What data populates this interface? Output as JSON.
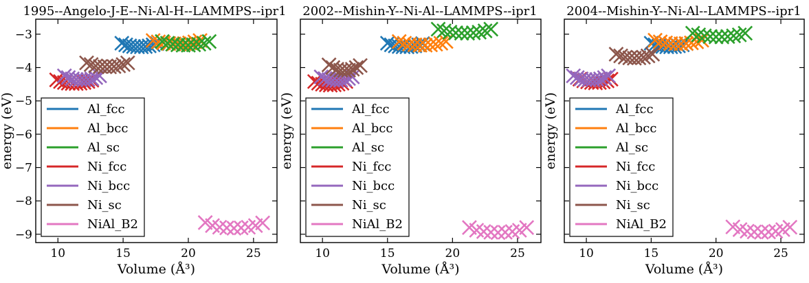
{
  "figure": {
    "panels": [
      {
        "title": "1995--Angelo-J-E--Ni-Al-H--LAMMPS--ipr1"
      },
      {
        "title": "2002--Mishin-Y--Ni-Al--LAMMPS--ipr1"
      },
      {
        "title": "2004--Mishin-Y--Ni-Al--LAMMPS--ipr1"
      }
    ],
    "xlabel": "Volume (Å³)",
    "ylabel": "energy (eV)",
    "legend": [
      "Al_fcc",
      "Al_bcc",
      "Al_sc",
      "Ni_fcc",
      "Ni_bcc",
      "Ni_sc",
      "NiAl_B2"
    ]
  },
  "chart_data": [
    {
      "type": "scatter",
      "title": "1995--Angelo-J-E--Ni-Al-H--LAMMPS--ipr1",
      "xlabel": "Volume (Å³)",
      "ylabel": "energy (eV)",
      "xlim": [
        8.3,
        26.8
      ],
      "ylim": [
        -9.25,
        -2.55
      ],
      "xticks": [
        10,
        15,
        20,
        25
      ],
      "yticks": [
        -9,
        -8,
        -7,
        -6,
        -5,
        -4,
        -3
      ],
      "marker": "x",
      "legend_placement": "lower-left",
      "series": [
        {
          "name": "Al_fcc",
          "color": "#1f77b4",
          "x": [
            14.9,
            15.2,
            15.5,
            15.8,
            16.1,
            16.4,
            16.7,
            17.0,
            17.3,
            17.6
          ],
          "y": [
            -3.27,
            -3.32,
            -3.35,
            -3.37,
            -3.38,
            -3.38,
            -3.37,
            -3.35,
            -3.32,
            -3.28
          ]
        },
        {
          "name": "Al_bcc",
          "color": "#ff7f0e",
          "x": [
            17.3,
            17.7,
            18.1,
            18.5,
            18.9,
            19.3,
            19.7,
            20.1,
            20.5,
            20.9
          ],
          "y": [
            -3.19,
            -3.23,
            -3.26,
            -3.28,
            -3.29,
            -3.29,
            -3.28,
            -3.26,
            -3.23,
            -3.19
          ]
        },
        {
          "name": "Al_sc",
          "color": "#2ca02c",
          "x": [
            18.0,
            18.4,
            18.8,
            19.2,
            19.6,
            20.0,
            20.4,
            20.8,
            21.2,
            21.6
          ],
          "y": [
            -3.22,
            -3.27,
            -3.3,
            -3.32,
            -3.33,
            -3.33,
            -3.32,
            -3.3,
            -3.27,
            -3.22
          ]
        },
        {
          "name": "Ni_fcc",
          "color": "#d62728",
          "x": [
            9.9,
            10.2,
            10.5,
            10.8,
            11.1,
            11.4,
            11.7,
            12.0,
            12.3,
            12.6
          ],
          "y": [
            -4.37,
            -4.42,
            -4.45,
            -4.47,
            -4.48,
            -4.48,
            -4.47,
            -4.45,
            -4.42,
            -4.38
          ]
        },
        {
          "name": "Ni_bcc",
          "color": "#9467bd",
          "x": [
            10.5,
            10.8,
            11.1,
            11.4,
            11.7,
            12.0,
            12.3,
            12.6,
            12.9,
            13.2
          ],
          "y": [
            -4.25,
            -4.3,
            -4.34,
            -4.36,
            -4.37,
            -4.37,
            -4.36,
            -4.34,
            -4.3,
            -4.25
          ]
        },
        {
          "name": "Ni_sc",
          "color": "#8c564b",
          "x": [
            12.2,
            12.55,
            12.9,
            13.25,
            13.6,
            13.95,
            14.3,
            14.65,
            15.0,
            15.35
          ],
          "y": [
            -3.86,
            -3.91,
            -3.95,
            -3.97,
            -3.98,
            -3.98,
            -3.97,
            -3.95,
            -3.91,
            -3.86
          ]
        },
        {
          "name": "NiAl_B2",
          "color": "#e377c2",
          "x": [
            21.3,
            21.85,
            22.4,
            22.95,
            23.5,
            24.05,
            24.6,
            25.15,
            25.7
          ],
          "y": [
            -8.65,
            -8.74,
            -8.79,
            -8.81,
            -8.82,
            -8.81,
            -8.79,
            -8.74,
            -8.66
          ]
        }
      ]
    },
    {
      "type": "scatter",
      "title": "2002--Mishin-Y--Ni-Al--LAMMPS--ipr1",
      "xlabel": "Volume (Å³)",
      "ylabel": "energy (eV)",
      "xlim": [
        8.3,
        26.8
      ],
      "ylim": [
        -9.25,
        -2.55
      ],
      "xticks": [
        10,
        15,
        20,
        25
      ],
      "yticks": [
        -9,
        -8,
        -7,
        -6,
        -5,
        -4,
        -3
      ],
      "marker": "x",
      "legend_placement": "lower-left",
      "series": [
        {
          "name": "Al_fcc",
          "color": "#1f77b4",
          "x": [
            15.0,
            15.3,
            15.6,
            15.9,
            16.2,
            16.5,
            16.8,
            17.1,
            17.4,
            17.7
          ],
          "y": [
            -3.27,
            -3.32,
            -3.35,
            -3.37,
            -3.38,
            -3.38,
            -3.37,
            -3.35,
            -3.32,
            -3.28
          ]
        },
        {
          "name": "Al_bcc",
          "color": "#ff7f0e",
          "x": [
            15.9,
            16.3,
            16.7,
            17.1,
            17.5,
            17.9,
            18.3,
            18.7,
            19.1,
            19.5
          ],
          "y": [
            -3.22,
            -3.27,
            -3.3,
            -3.32,
            -3.33,
            -3.33,
            -3.32,
            -3.3,
            -3.27,
            -3.22
          ]
        },
        {
          "name": "Al_sc",
          "color": "#2ca02c",
          "x": [
            18.9,
            19.35,
            19.8,
            20.25,
            20.7,
            21.15,
            21.6,
            22.05,
            22.5,
            22.95
          ],
          "y": [
            -2.85,
            -2.9,
            -2.94,
            -2.96,
            -2.97,
            -2.97,
            -2.96,
            -2.94,
            -2.9,
            -2.85
          ]
        },
        {
          "name": "Ni_fcc",
          "color": "#d62728",
          "x": [
            9.4,
            9.7,
            10.0,
            10.3,
            10.6,
            10.9,
            11.2,
            11.5,
            11.8
          ],
          "y": [
            -4.42,
            -4.47,
            -4.5,
            -4.52,
            -4.53,
            -4.52,
            -4.5,
            -4.47,
            -4.42
          ]
        },
        {
          "name": "Ni_bcc",
          "color": "#9467bd",
          "x": [
            9.9,
            10.2,
            10.5,
            10.8,
            11.1,
            11.4,
            11.7,
            12.0,
            12.3
          ],
          "y": [
            -4.28,
            -4.33,
            -4.36,
            -4.38,
            -4.39,
            -4.38,
            -4.36,
            -4.33,
            -4.28
          ]
        },
        {
          "name": "Ni_sc",
          "color": "#8c564b",
          "x": [
            10.5,
            10.8,
            11.1,
            11.4,
            11.7,
            12.0,
            12.3,
            12.6,
            12.9
          ],
          "y": [
            -3.92,
            -4.0,
            -4.05,
            -4.08,
            -4.09,
            -4.08,
            -4.05,
            -4.0,
            -3.94
          ]
        },
        {
          "name": "NiAl_B2",
          "color": "#e377c2",
          "x": [
            21.3,
            21.85,
            22.4,
            22.95,
            23.5,
            24.05,
            24.6,
            25.15,
            25.7
          ],
          "y": [
            -8.8,
            -8.88,
            -8.92,
            -8.94,
            -8.95,
            -8.94,
            -8.92,
            -8.88,
            -8.8
          ]
        }
      ]
    },
    {
      "type": "scatter",
      "title": "2004--Mishin-Y--Ni-Al--LAMMPS--ipr1",
      "xlabel": "Volume (Å³)",
      "ylabel": "energy (eV)",
      "xlim": [
        8.3,
        26.8
      ],
      "ylim": [
        -9.25,
        -2.55
      ],
      "xticks": [
        10,
        15,
        20,
        25
      ],
      "yticks": [
        -9,
        -8,
        -7,
        -6,
        -5,
        -4,
        -3
      ],
      "marker": "x",
      "legend_placement": "lower-left",
      "series": [
        {
          "name": "Al_fcc",
          "color": "#1f77b4",
          "x": [
            15.0,
            15.3,
            15.6,
            15.9,
            16.2,
            16.5,
            16.8,
            17.1,
            17.4,
            17.7
          ],
          "y": [
            -3.27,
            -3.32,
            -3.35,
            -3.37,
            -3.38,
            -3.38,
            -3.37,
            -3.35,
            -3.32,
            -3.28
          ]
        },
        {
          "name": "Al_bcc",
          "color": "#ff7f0e",
          "x": [
            15.3,
            15.7,
            16.1,
            16.5,
            16.9,
            17.3,
            17.7,
            18.1,
            18.5,
            18.9
          ],
          "y": [
            -3.18,
            -3.23,
            -3.26,
            -3.28,
            -3.29,
            -3.29,
            -3.28,
            -3.26,
            -3.23,
            -3.18
          ]
        },
        {
          "name": "Al_sc",
          "color": "#2ca02c",
          "x": [
            18.2,
            18.65,
            19.1,
            19.55,
            20.0,
            20.45,
            20.9,
            21.35,
            21.8,
            22.25
          ],
          "y": [
            -2.97,
            -3.02,
            -3.05,
            -3.07,
            -3.08,
            -3.08,
            -3.07,
            -3.05,
            -3.02,
            -2.97
          ]
        },
        {
          "name": "Ni_fcc",
          "color": "#d62728",
          "x": [
            9.5,
            9.8,
            10.1,
            10.4,
            10.7,
            11.0,
            11.3,
            11.6,
            11.9
          ],
          "y": [
            -4.35,
            -4.4,
            -4.43,
            -4.45,
            -4.46,
            -4.45,
            -4.43,
            -4.4,
            -4.35
          ]
        },
        {
          "name": "Ni_bcc",
          "color": "#9467bd",
          "x": [
            9.0,
            9.3,
            9.6,
            9.9,
            10.2,
            10.5,
            10.8,
            11.1,
            11.4,
            11.7
          ],
          "y": [
            -4.25,
            -4.3,
            -4.34,
            -4.36,
            -4.37,
            -4.37,
            -4.36,
            -4.34,
            -4.3,
            -4.25
          ]
        },
        {
          "name": "Ni_sc",
          "color": "#8c564b",
          "x": [
            12.3,
            12.65,
            13.0,
            13.35,
            13.7,
            14.05,
            14.4,
            14.75,
            15.1
          ],
          "y": [
            -3.6,
            -3.65,
            -3.69,
            -3.71,
            -3.72,
            -3.71,
            -3.69,
            -3.65,
            -3.6
          ]
        },
        {
          "name": "NiAl_B2",
          "color": "#e377c2",
          "x": [
            21.3,
            21.85,
            22.4,
            22.95,
            23.5,
            24.05,
            24.6,
            25.15,
            25.7
          ],
          "y": [
            -8.78,
            -8.86,
            -8.91,
            -8.93,
            -8.94,
            -8.93,
            -8.91,
            -8.86,
            -8.79
          ]
        }
      ]
    }
  ]
}
